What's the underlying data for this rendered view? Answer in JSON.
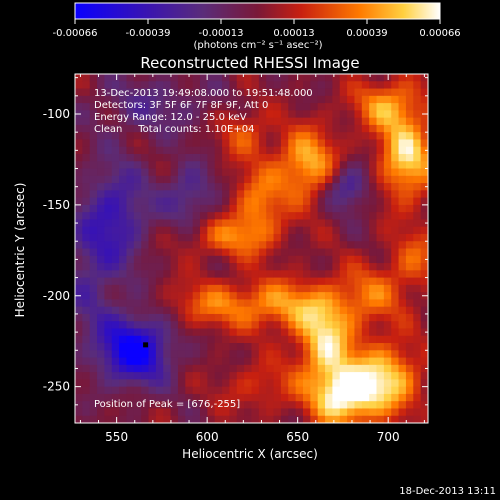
{
  "colorbar": {
    "ticks": [
      "-0.00066",
      "-0.00039",
      "-0.00013",
      "0.00013",
      "0.00039",
      "0.00066"
    ],
    "units_label": "(photons cm⁻² s⁻¹ asec⁻²)",
    "range": [
      -0.00066,
      0.00066
    ]
  },
  "footer": {
    "timestamp": "18-Dec-2013 13:11"
  },
  "chart_data": {
    "type": "heatmap",
    "title": "Reconstructed RHESSI Image",
    "xlabel": "Heliocentric X (arcsec)",
    "ylabel": "Heliocentric Y (arcsec)",
    "xlim": [
      527,
      722
    ],
    "ylim": [
      -270,
      -78
    ],
    "x_ticks": [
      550,
      600,
      650,
      700
    ],
    "y_ticks": [
      -100,
      -150,
      -200,
      -250
    ],
    "annotation_lines": [
      "13-Dec-2013 19:49:08.000 to 19:51:48.000",
      "Detectors: 3F 5F 6F 7F 8F 9F, Att 0",
      "Energy Range: 12.0 - 25.0 keV",
      "Clean     Total counts: 1.10E+04"
    ],
    "peak_label": "Position of Peak = [676,-255]",
    "peak": [
      676,
      -255
    ],
    "marker": [
      566,
      -227
    ],
    "colormap": "blue-purple-red-orange-yellow-white",
    "blobs": [
      {
        "x": 560,
        "y": -230,
        "sx": 14,
        "sy": 13,
        "a": -1.0
      },
      {
        "x": 550,
        "y": -155,
        "sx": 13,
        "sy": 20,
        "a": -0.55
      },
      {
        "x": 590,
        "y": -145,
        "sx": 10,
        "sy": 12,
        "a": -0.45
      },
      {
        "x": 570,
        "y": -95,
        "sx": 25,
        "sy": 12,
        "a": -0.3
      },
      {
        "x": 535,
        "y": -190,
        "sx": 12,
        "sy": 25,
        "a": -0.35
      },
      {
        "x": 612,
        "y": -168,
        "sx": 18,
        "sy": 8,
        "a": 0.45
      },
      {
        "x": 628,
        "y": -150,
        "sx": 10,
        "sy": 14,
        "a": 0.55
      },
      {
        "x": 655,
        "y": -128,
        "sx": 12,
        "sy": 14,
        "a": 0.75
      },
      {
        "x": 640,
        "y": -205,
        "sx": 20,
        "sy": 10,
        "a": 0.6
      },
      {
        "x": 600,
        "y": -205,
        "sx": 16,
        "sy": 9,
        "a": 0.4
      },
      {
        "x": 665,
        "y": -225,
        "sx": 11,
        "sy": 16,
        "a": 0.8
      },
      {
        "x": 676,
        "y": -255,
        "sx": 13,
        "sy": 12,
        "a": 1.0
      },
      {
        "x": 700,
        "y": -245,
        "sx": 13,
        "sy": 14,
        "a": 0.75
      },
      {
        "x": 690,
        "y": -200,
        "sx": 14,
        "sy": 12,
        "a": 0.45
      },
      {
        "x": 710,
        "y": -125,
        "sx": 11,
        "sy": 16,
        "a": 0.85
      },
      {
        "x": 700,
        "y": -95,
        "sx": 14,
        "sy": 10,
        "a": 0.6
      },
      {
        "x": 678,
        "y": -140,
        "sx": 9,
        "sy": 9,
        "a": -0.55
      },
      {
        "x": 620,
        "y": -110,
        "sx": 10,
        "sy": 10,
        "a": 0.4
      },
      {
        "x": 715,
        "y": -180,
        "sx": 10,
        "sy": 12,
        "a": 0.4
      },
      {
        "x": 630,
        "y": -250,
        "sx": 16,
        "sy": 10,
        "a": 0.3
      }
    ]
  }
}
